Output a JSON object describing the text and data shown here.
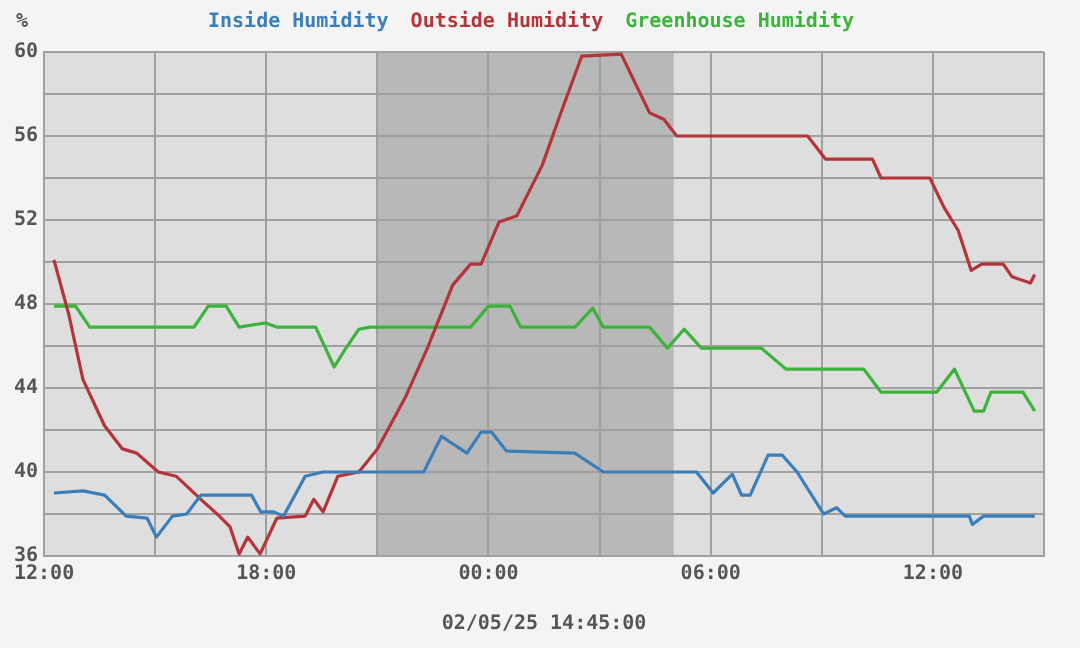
{
  "chart_data": {
    "type": "line",
    "ylabel": "%",
    "xlabel": "02/05/25 14:45:00",
    "legend": "top",
    "grid": true,
    "xlim": [
      "--02-04T12:00",
      "--02-05T15:00"
    ],
    "xticks": [
      {
        "value": "--02-04T12:00",
        "label": "12:00"
      },
      {
        "value": "--02-04T15:00",
        "label": null
      },
      {
        "value": "--02-04T18:00",
        "label": "18:00"
      },
      {
        "value": "--02-04T21:00",
        "label": null
      },
      {
        "value": "--02-05T00:00",
        "label": "00:00"
      },
      {
        "value": "--02-05T03:00",
        "label": null
      },
      {
        "value": "--02-05T06:00",
        "label": "06:00"
      },
      {
        "value": "--02-05T09:00",
        "label": null
      },
      {
        "value": "--02-05T12:00",
        "label": "12:00"
      },
      {
        "value": "--02-05T15:00",
        "label": null
      }
    ],
    "ylim": [
      36,
      60
    ],
    "yticks": [
      36,
      {
        "value": 38,
        "label": null
      },
      40,
      {
        "value": 42,
        "label": null
      },
      44,
      {
        "value": 46,
        "label": null
      },
      48,
      {
        "value": 50,
        "label": null
      },
      52,
      {
        "value": 54,
        "label": null
      },
      56,
      {
        "value": 58,
        "label": null
      },
      60
    ],
    "bands": [
      {
        "axis": "x",
        "from": "--02-04T21:00",
        "to": "--02-05T05:00",
        "color": "#b8b8b8"
      }
    ],
    "series": [
      {
        "name": "Inside Humidity",
        "color": "#3a7fba",
        "x": [
          "--02-04T12:16",
          "--02-04T13:03",
          "--02-04T13:38",
          "--02-04T14:13",
          "--02-04T14:47",
          "--02-04T15:02",
          "--02-04T15:28",
          "--02-04T15:51",
          "--02-04T16:14",
          "--02-04T17:36",
          "--02-04T17:51",
          "--02-04T18:12",
          "--02-04T18:28",
          "--02-04T19:03",
          "--02-04T19:32",
          "--02-04T22:15",
          "--02-04T22:44",
          "--02-04T23:25",
          "--02-04T23:48",
          "--02-05T00:05",
          "--02-05T00:29",
          "--02-05T02:20",
          "--02-05T03:06",
          "--02-05T05:37",
          "--02-05T06:04",
          "--02-05T06:35",
          "--02-05T06:50",
          "--02-05T07:04",
          "--02-05T07:33",
          "--02-05T07:56",
          "--02-05T08:20",
          "--02-05T09:03",
          "--02-05T09:24",
          "--02-05T09:38",
          "--02-05T12:59",
          "--02-05T13:04",
          "--02-05T13:22",
          "--02-05T14:45"
        ],
        "values": [
          39.0,
          39.1,
          38.9,
          37.9,
          37.8,
          36.9,
          37.9,
          38.0,
          38.9,
          38.9,
          38.1,
          38.1,
          37.9,
          39.8,
          40.0,
          40.0,
          41.7,
          40.9,
          41.9,
          41.9,
          41.0,
          40.9,
          40.0,
          40.0,
          39.0,
          39.9,
          38.9,
          38.9,
          40.8,
          40.8,
          40.0,
          38.0,
          38.3,
          37.9,
          37.9,
          37.5,
          37.9,
          37.9
        ]
      },
      {
        "name": "Outside Humidity",
        "color": "#b5343a",
        "x": [
          "--02-04T12:16",
          "--02-04T12:40",
          "--02-04T13:03",
          "--02-04T13:38",
          "--02-04T14:07",
          "--02-04T14:30",
          "--02-04T15:05",
          "--02-04T15:34",
          "--02-04T16:14",
          "--02-04T16:44",
          "--02-04T17:01",
          "--02-04T17:16",
          "--02-04T17:30",
          "--02-04T17:50",
          "--02-04T18:17",
          "--02-04T19:03",
          "--02-04T19:17",
          "--02-04T19:32",
          "--02-04T19:56",
          "--02-04T20:30",
          "--02-04T21:00",
          "--02-04T21:46",
          "--02-04T22:21",
          "--02-04T23:02",
          "--02-04T23:31",
          "--02-04T23:48",
          "--02-05T00:17",
          "--02-05T00:46",
          "--02-05T01:27",
          "--02-05T01:56",
          "--02-05T02:31",
          "--02-05T03:35",
          "--02-05T03:58",
          "--02-05T04:21",
          "--02-05T04:44",
          "--02-05T05:05",
          "--02-05T08:37",
          "--02-05T09:06",
          "--02-05T10:22",
          "--02-05T10:36",
          "--02-05T11:55",
          "--02-05T12:18",
          "--02-05T12:41",
          "--02-05T13:02",
          "--02-05T13:19",
          "--02-05T13:54",
          "--02-05T14:08",
          "--02-05T14:38",
          "--02-05T14:45"
        ],
        "values": [
          50.1,
          47.5,
          44.4,
          42.2,
          41.1,
          40.9,
          40.0,
          39.8,
          38.7,
          37.9,
          37.4,
          36.1,
          36.9,
          36.1,
          37.8,
          37.9,
          38.7,
          38.1,
          39.8,
          40.0,
          41.1,
          43.6,
          45.9,
          48.9,
          49.9,
          49.9,
          51.9,
          52.2,
          54.6,
          57.0,
          59.8,
          59.9,
          58.5,
          57.1,
          56.8,
          56.0,
          56.0,
          54.9,
          54.9,
          54.0,
          54.0,
          52.6,
          51.5,
          49.6,
          49.9,
          49.9,
          49.3,
          49.0,
          49.4
        ]
      },
      {
        "name": "Greenhouse Humidity",
        "color": "#3cb43c",
        "x": [
          "--02-04T12:16",
          "--02-04T12:51",
          "--02-04T13:14",
          "--02-04T16:03",
          "--02-04T16:26",
          "--02-04T16:55",
          "--02-04T17:16",
          "--02-04T17:59",
          "--02-04T18:17",
          "--02-04T19:20",
          "--02-04T19:50",
          "--02-04T20:07",
          "--02-04T20:30",
          "--02-04T20:48",
          "--02-04T23:31",
          "--02-05T00:00",
          "--02-05T00:35",
          "--02-05T00:52",
          "--02-05T02:20",
          "--02-05T02:49",
          "--02-05T03:06",
          "--02-05T04:21",
          "--02-05T04:50",
          "--02-05T05:17",
          "--02-05T05:45",
          "--02-05T07:22",
          "--02-05T08:02",
          "--02-05T10:08",
          "--02-05T10:36",
          "--02-05T12:06",
          "--02-05T12:35",
          "--02-05T13:07",
          "--02-05T13:22",
          "--02-05T13:34",
          "--02-05T14:26",
          "--02-05T14:45"
        ],
        "values": [
          47.9,
          47.9,
          46.9,
          46.9,
          47.9,
          47.9,
          46.9,
          47.1,
          46.9,
          46.9,
          45.0,
          45.8,
          46.8,
          46.9,
          46.9,
          47.9,
          47.9,
          46.9,
          46.9,
          47.8,
          46.9,
          46.9,
          45.9,
          46.8,
          45.9,
          45.9,
          44.9,
          44.9,
          43.8,
          43.8,
          44.9,
          42.9,
          42.9,
          43.8,
          43.8,
          42.9
        ]
      }
    ]
  }
}
